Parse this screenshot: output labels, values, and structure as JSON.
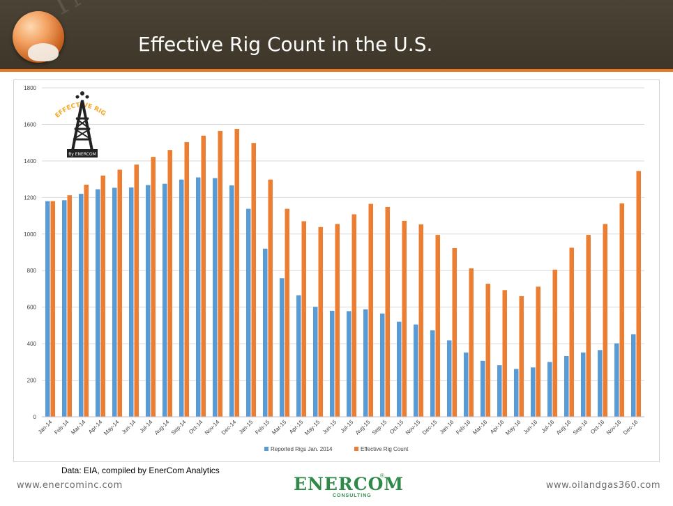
{
  "slide": {
    "title": "Effective Rig Count in the U.S.",
    "watermark": "INDUSTRIES",
    "source": "Data: EIA, compiled by EnerCom Analytics",
    "footer_left": "www.enercominc.com",
    "footer_right": "www.oilandgas360.com",
    "rig_logo_text": "EFFECTIVE RIG COUNT",
    "rig_logo_by": "By ENERCOM",
    "brand_logo": "ENERCOM",
    "brand_sub": "CONSULTING",
    "brand_reg": "®"
  },
  "colors": {
    "header": "#3e3729",
    "accent": "#e87722",
    "series_reported": "#5b9bd5",
    "series_effective": "#ed7d31"
  },
  "chart_data": {
    "type": "bar",
    "title": "",
    "xlabel": "",
    "ylabel": "",
    "ylim": [
      0,
      1800
    ],
    "yticks": [
      0,
      200,
      400,
      600,
      800,
      1000,
      1200,
      1400,
      1600,
      1800
    ],
    "grid": true,
    "legend_position": "bottom",
    "categories": [
      "Jan-14",
      "Feb-14",
      "Mar-14",
      "Apr-14",
      "May-14",
      "Jun-14",
      "Jul-14",
      "Aug-14",
      "Sep-14",
      "Oct-14",
      "Nov-14",
      "Dec-14",
      "Jan-15",
      "Feb-15",
      "Mar-15",
      "Apr-15",
      "May-15",
      "Jun-15",
      "Jul-15",
      "Aug-15",
      "Sep-15",
      "Oct-15",
      "Nov-15",
      "Dec-15",
      "Jan-16",
      "Feb-16",
      "Mar-16",
      "Apr-16",
      "May-16",
      "Jun-16",
      "Jul-16",
      "Aug-16",
      "Sep-16",
      "Oct-16",
      "Nov-16",
      "Dec-16"
    ],
    "series": [
      {
        "name": "Reported Rigs Jan. 2014",
        "color": "#5b9bd5",
        "values": [
          1180,
          1185,
          1220,
          1245,
          1253,
          1255,
          1268,
          1275,
          1298,
          1310,
          1306,
          1266,
          1138,
          920,
          758,
          665,
          602,
          580,
          578,
          588,
          565,
          520,
          505,
          473,
          418,
          352,
          306,
          282,
          262,
          270,
          300,
          332,
          352,
          365,
          402,
          452
        ]
      },
      {
        "name": "Effective Rig Count",
        "color": "#ed7d31",
        "values": [
          1180,
          1212,
          1270,
          1320,
          1352,
          1380,
          1422,
          1460,
          1503,
          1538,
          1564,
          1575,
          1498,
          1298,
          1138,
          1070,
          1038,
          1055,
          1108,
          1165,
          1148,
          1072,
          1053,
          995,
          923,
          812,
          728,
          693,
          660,
          712,
          805,
          925,
          995,
          1055,
          1168,
          1345
        ]
      }
    ]
  }
}
